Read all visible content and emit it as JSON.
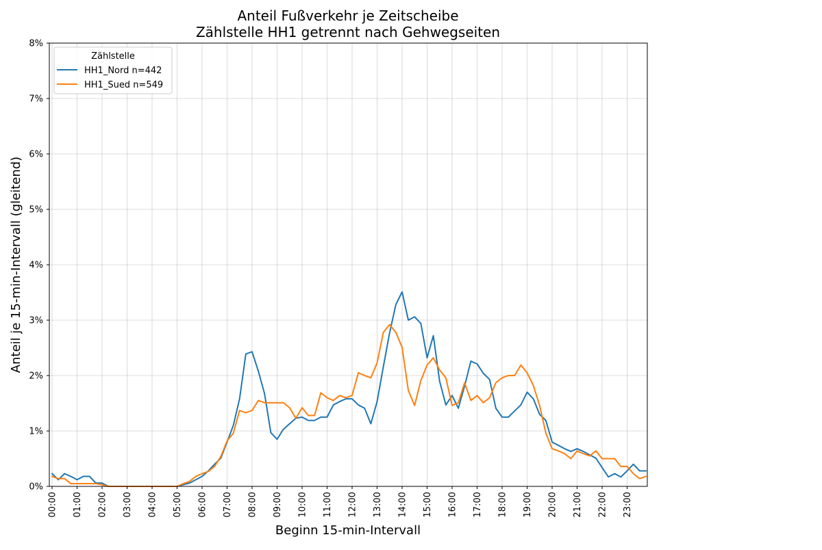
{
  "chart_data": {
    "type": "line",
    "title": "Anteil Fußverkehr je Zeitscheibe",
    "subtitle": "Zählstelle HH1 getrennt nach Gehwegseiten",
    "xlabel": "Beginn 15-min-Intervall",
    "ylabel": "Anteil je 15-min-Intervall (gleitend)",
    "x_ticks": [
      "00:00",
      "01:00",
      "02:00",
      "03:00",
      "04:00",
      "05:00",
      "06:00",
      "07:00",
      "08:00",
      "09:00",
      "10:00",
      "11:00",
      "12:00",
      "13:00",
      "14:00",
      "15:00",
      "16:00",
      "17:00",
      "18:00",
      "19:00",
      "20:00",
      "21:00",
      "22:00",
      "23:00"
    ],
    "y_ticks": [
      "0%",
      "1%",
      "2%",
      "3%",
      "4%",
      "5%",
      "6%",
      "7%",
      "8%"
    ],
    "ylim": [
      0,
      8
    ],
    "y_unit": "%",
    "x_interval_minutes": 15,
    "grid": true,
    "legend": {
      "title": "Zählstelle",
      "placement": "top-left"
    },
    "series": [
      {
        "name": "HH1_Nord n=442",
        "color": "#1f77b4",
        "values": [
          0.23,
          0.12,
          0.23,
          0.18,
          0.12,
          0.18,
          0.18,
          0.06,
          0.06,
          0,
          0,
          0,
          0,
          0,
          0,
          0,
          0,
          0,
          0,
          0,
          0,
          0.03,
          0.06,
          0.12,
          0.18,
          0.28,
          0.4,
          0.51,
          0.8,
          1.1,
          1.58,
          2.39,
          2.43,
          2.08,
          1.67,
          0.97,
          0.85,
          1.03,
          1.13,
          1.23,
          1.25,
          1.19,
          1.19,
          1.25,
          1.25,
          1.47,
          1.53,
          1.58,
          1.58,
          1.47,
          1.41,
          1.13,
          1.53,
          2.16,
          2.77,
          3.28,
          3.51,
          3.0,
          3.06,
          2.94,
          2.32,
          2.72,
          1.9,
          1.47,
          1.64,
          1.41,
          1.81,
          2.26,
          2.21,
          2.04,
          1.93,
          1.41,
          1.25,
          1.25,
          1.36,
          1.47,
          1.7,
          1.58,
          1.3,
          1.19,
          0.8,
          0.74,
          0.68,
          0.63,
          0.68,
          0.63,
          0.57,
          0.51,
          0.34,
          0.17,
          0.23,
          0.17,
          0.28,
          0.4,
          0.28,
          0.28
        ]
      },
      {
        "name": "HH1_Sued n=549",
        "color": "#ff7f0e",
        "values": [
          0.18,
          0.14,
          0.14,
          0.05,
          0.05,
          0.05,
          0.05,
          0.05,
          0.03,
          0,
          0,
          0,
          0,
          0,
          0,
          0,
          0,
          0,
          0,
          0,
          0,
          0.05,
          0.09,
          0.18,
          0.23,
          0.27,
          0.36,
          0.54,
          0.82,
          0.96,
          1.37,
          1.33,
          1.37,
          1.55,
          1.51,
          1.51,
          1.51,
          1.51,
          1.42,
          1.23,
          1.42,
          1.28,
          1.28,
          1.69,
          1.6,
          1.55,
          1.64,
          1.6,
          1.64,
          2.05,
          2.0,
          1.96,
          2.23,
          2.78,
          2.92,
          2.78,
          2.51,
          1.73,
          1.46,
          1.91,
          2.19,
          2.32,
          2.1,
          1.96,
          1.46,
          1.51,
          1.87,
          1.55,
          1.64,
          1.51,
          1.6,
          1.87,
          1.96,
          2.0,
          2.0,
          2.19,
          2.05,
          1.82,
          1.46,
          0.96,
          0.68,
          0.64,
          0.59,
          0.5,
          0.64,
          0.59,
          0.55,
          0.64,
          0.5,
          0.5,
          0.5,
          0.36,
          0.36,
          0.23,
          0.14,
          0.18
        ]
      }
    ]
  }
}
